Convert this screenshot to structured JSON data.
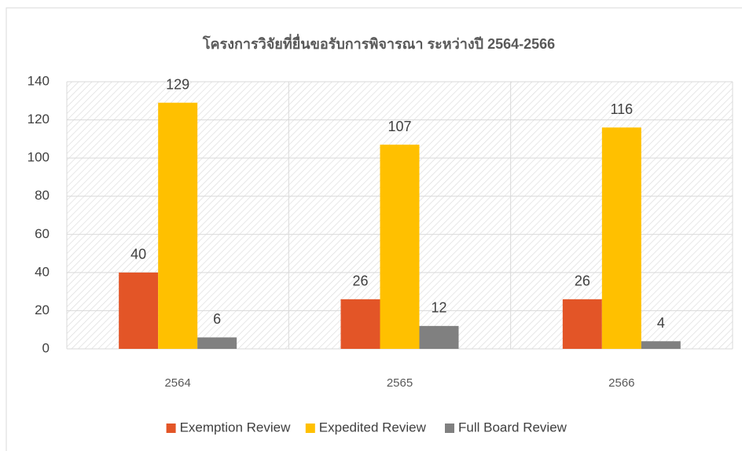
{
  "chart_data": {
    "type": "bar",
    "title": "โครงการวิจัยที่ยื่นขอรับการพิจารณา ระหว่างปี 2564-2566",
    "categories": [
      "2564",
      "2565",
      "2566"
    ],
    "series": [
      {
        "name": "Exemption Review",
        "color": "#e35527",
        "values": [
          40,
          26,
          26
        ]
      },
      {
        "name": "Expedited Review",
        "color": "#ffc000",
        "values": [
          129,
          107,
          116
        ]
      },
      {
        "name": "Full Board Review",
        "color": "#808080",
        "values": [
          6,
          12,
          4
        ]
      }
    ],
    "ylim": [
      0,
      140
    ],
    "yticks": [
      0,
      20,
      40,
      60,
      80,
      100,
      120,
      140
    ],
    "grid": true,
    "legend": "bottom"
  }
}
